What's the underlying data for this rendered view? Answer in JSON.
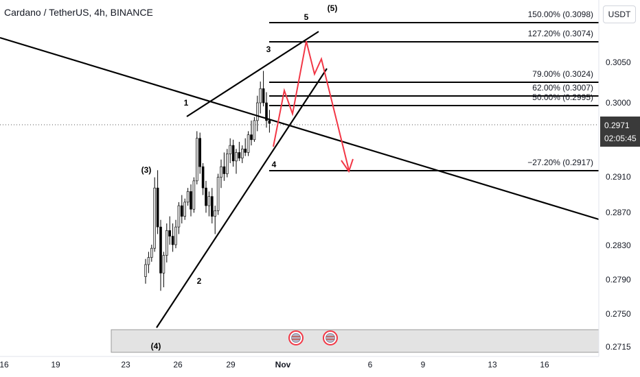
{
  "header": {
    "title": "Cardano / TetherUS, 4h, BINANCE",
    "unit": "USDT"
  },
  "price_badge": {
    "price": "0.2971",
    "countdown": "02:05:45"
  },
  "chart_data": {
    "type": "candlestick",
    "symbol": "Cardano / TetherUS",
    "timeframe": "4h",
    "exchange": "BINANCE",
    "y_ticks": [
      "0.3050",
      "0.3000",
      "0.2910",
      "0.2870",
      "0.2830",
      "0.2790",
      "0.2750",
      "0.2715"
    ],
    "x_ticks": [
      "16",
      "19",
      "23",
      "26",
      "29",
      "Nov",
      "6",
      "9",
      "13",
      "16"
    ],
    "current_price": 0.2971,
    "fib_levels": [
      {
        "label": "150.00% (0.3098)",
        "value": 0.3098
      },
      {
        "label": "127.20% (0.3074)",
        "value": 0.3074
      },
      {
        "label": "79.00% (0.3024)",
        "value": 0.3024
      },
      {
        "label": "62.00% (0.3007)",
        "value": 0.3007
      },
      {
        "label": "50.00% (0.2995)",
        "value": 0.2995
      },
      {
        "label": "−27.20% (0.2917)",
        "value": 0.2917
      }
    ],
    "wave_labels": [
      "1",
      "2",
      "3",
      "4",
      "5",
      "(3)",
      "(4)",
      "(5)"
    ],
    "candles": [
      [
        0.2755,
        0.278,
        0.2745,
        0.2772
      ],
      [
        0.2772,
        0.279,
        0.276,
        0.2782
      ],
      [
        0.2782,
        0.28,
        0.2776,
        0.2795
      ],
      [
        0.2795,
        0.2895,
        0.279,
        0.288
      ],
      [
        0.288,
        0.2905,
        0.2815,
        0.2825
      ],
      [
        0.2825,
        0.2835,
        0.2735,
        0.276
      ],
      [
        0.276,
        0.279,
        0.274,
        0.2785
      ],
      [
        0.2785,
        0.283,
        0.2775,
        0.282
      ],
      [
        0.282,
        0.284,
        0.28,
        0.2812
      ],
      [
        0.2812,
        0.283,
        0.279,
        0.28
      ],
      [
        0.28,
        0.2835,
        0.2795,
        0.2825
      ],
      [
        0.2825,
        0.286,
        0.2815,
        0.2855
      ],
      [
        0.2855,
        0.287,
        0.283,
        0.284
      ],
      [
        0.284,
        0.2865,
        0.2835,
        0.286
      ],
      [
        0.286,
        0.288,
        0.2855,
        0.2875
      ],
      [
        0.2875,
        0.2885,
        0.284,
        0.285
      ],
      [
        0.285,
        0.2895,
        0.2845,
        0.289
      ],
      [
        0.289,
        0.296,
        0.2885,
        0.295
      ],
      [
        0.295,
        0.2958,
        0.29,
        0.291
      ],
      [
        0.291,
        0.2915,
        0.287,
        0.288
      ],
      [
        0.288,
        0.289,
        0.2845,
        0.2855
      ],
      [
        0.2855,
        0.2875,
        0.284,
        0.2868
      ],
      [
        0.2868,
        0.288,
        0.283,
        0.284
      ],
      [
        0.284,
        0.2855,
        0.2815,
        0.2848
      ],
      [
        0.2848,
        0.29,
        0.2842,
        0.2895
      ],
      [
        0.2895,
        0.292,
        0.288,
        0.291
      ],
      [
        0.291,
        0.293,
        0.289,
        0.29
      ],
      [
        0.29,
        0.2935,
        0.2895,
        0.2928
      ],
      [
        0.2928,
        0.295,
        0.2915,
        0.294
      ],
      [
        0.294,
        0.2948,
        0.291,
        0.2918
      ],
      [
        0.2918,
        0.2935,
        0.29,
        0.293
      ],
      [
        0.293,
        0.2945,
        0.2918,
        0.2922
      ],
      [
        0.2922,
        0.294,
        0.2915,
        0.2935
      ],
      [
        0.2935,
        0.295,
        0.2925,
        0.293
      ],
      [
        0.293,
        0.296,
        0.2925,
        0.2955
      ],
      [
        0.2955,
        0.2975,
        0.294,
        0.2948
      ],
      [
        0.2948,
        0.298,
        0.2945,
        0.2975
      ],
      [
        0.2975,
        0.301,
        0.296,
        0.3
      ],
      [
        0.3,
        0.303,
        0.2985,
        0.302
      ],
      [
        0.302,
        0.3045,
        0.2995,
        0.3
      ],
      [
        0.3,
        0.3015,
        0.2965,
        0.2975
      ],
      [
        0.2975,
        0.299,
        0.2958,
        0.2971
      ]
    ],
    "projection": [
      0.2955,
      0.3005,
      0.298,
      0.3074,
      0.303,
      0.3048,
      0.2912
    ]
  }
}
